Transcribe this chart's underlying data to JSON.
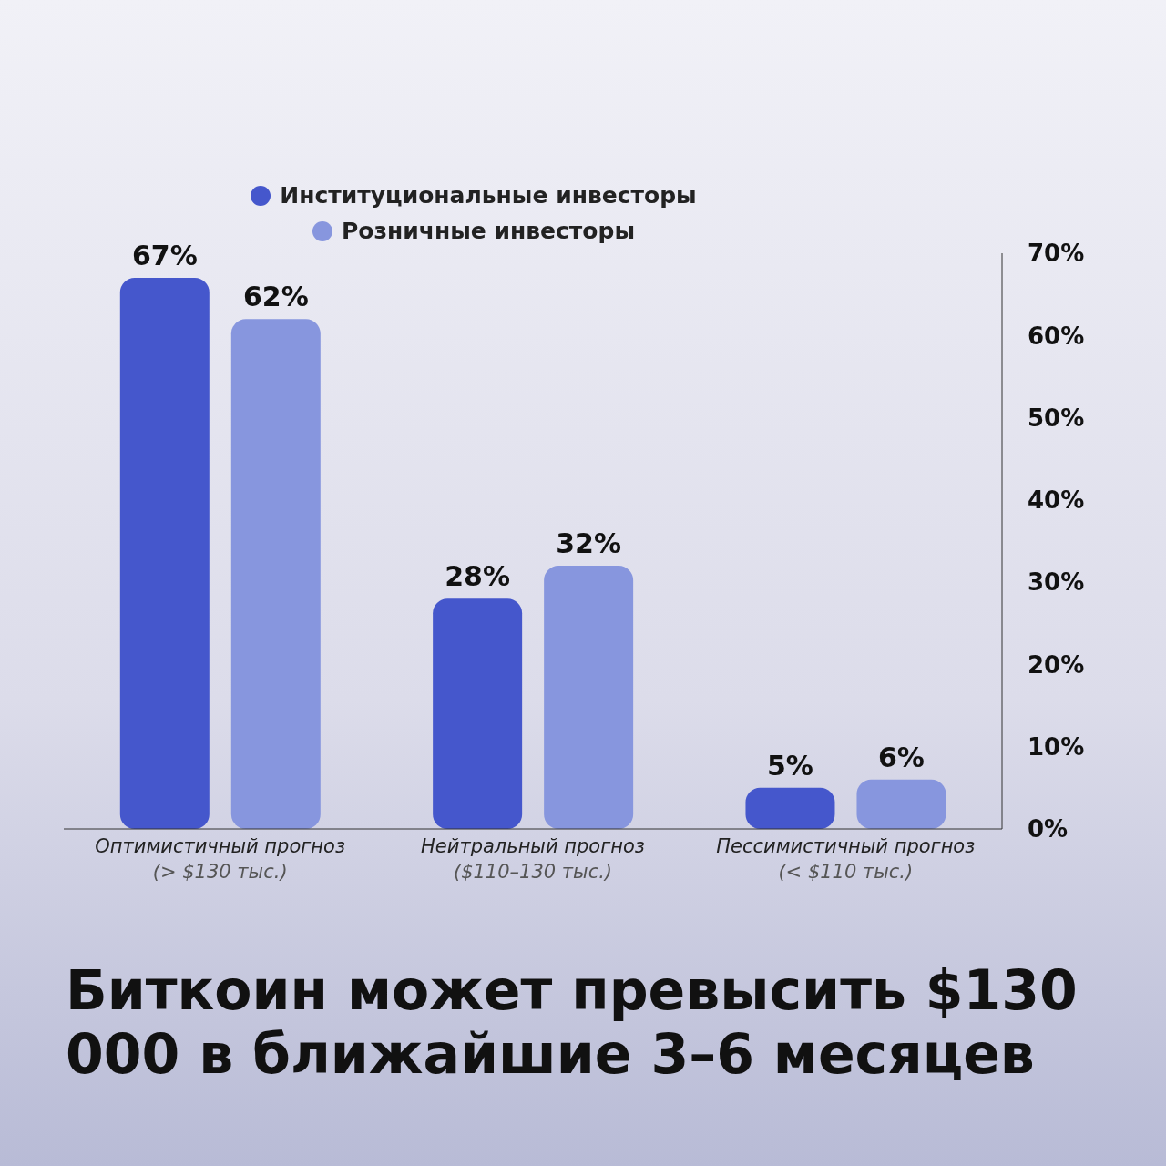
{
  "chart_data": {
    "type": "bar",
    "title": "Биткоин может превысить $130 000 в ближайшие 3–6 месяцев",
    "categories": [
      "Оптимистичный прогноз\n(> $130 тыс.)",
      "Нейтральный прогноз\n($110–130 тыс.)",
      "Пессимистичный прогноз\n(< $110 тыс.)"
    ],
    "series": [
      {
        "name": "Институциональные инвесторы",
        "color": "#4557cc",
        "values": [
          67,
          28,
          5
        ],
        "value_labels": [
          "67%",
          "28%",
          "5%"
        ]
      },
      {
        "name": "Розничные инвесторы",
        "color": "#8796de",
        "values": [
          62,
          32,
          6
        ],
        "value_labels": [
          "62%",
          "32%",
          "6%"
        ]
      }
    ],
    "ylim": [
      0,
      70
    ],
    "yticks": [
      {
        "value": 0,
        "label": "0%"
      },
      {
        "value": 10,
        "label": "10%"
      },
      {
        "value": 20,
        "label": "20%"
      },
      {
        "value": 30,
        "label": "30%"
      },
      {
        "value": 40,
        "label": "40%"
      },
      {
        "value": 50,
        "label": "50%"
      },
      {
        "value": 60,
        "label": "60%"
      },
      {
        "value": 70,
        "label": "70%"
      }
    ],
    "legend": "top",
    "grid": false
  }
}
